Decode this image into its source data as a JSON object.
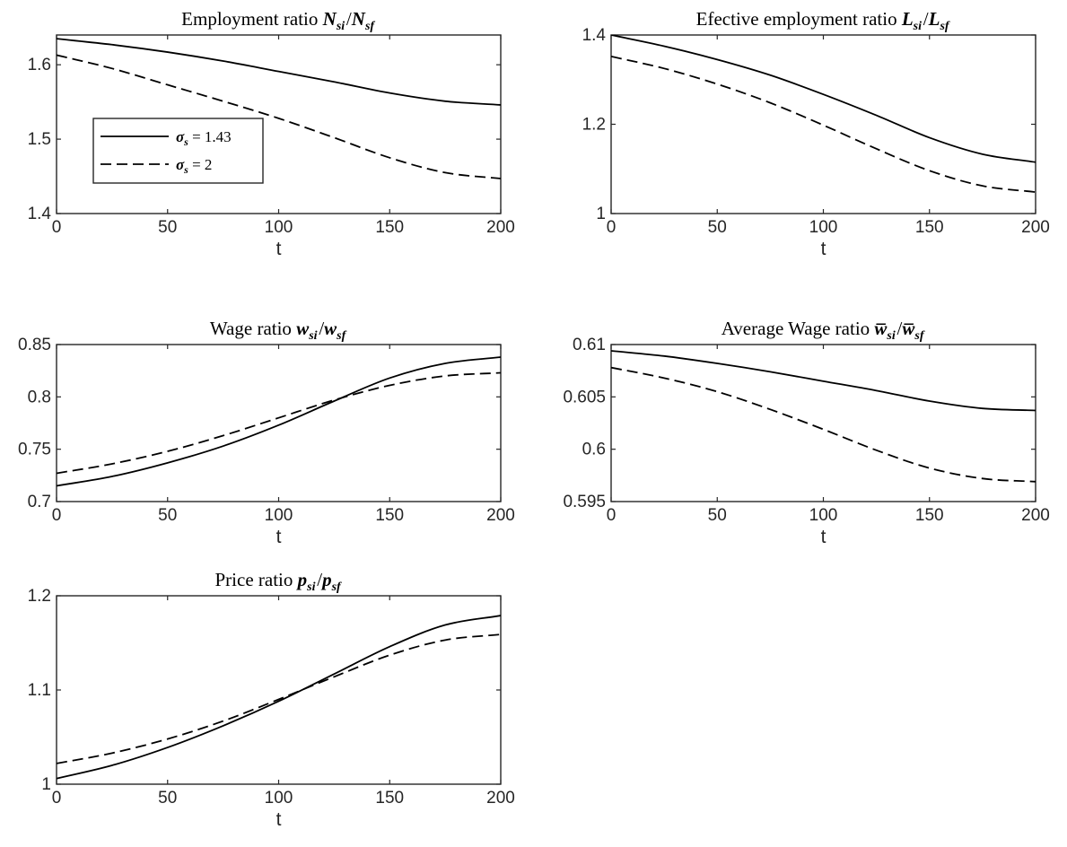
{
  "chart_data": [
    {
      "type": "line",
      "title": "Employment ratio N_si/N_sf",
      "title_plain": "Employment ratio",
      "title_math": [
        {
          "base": "N",
          "sub": "si"
        },
        {
          "text": "/"
        },
        {
          "base": "N",
          "sub": "sf"
        }
      ],
      "xlabel": "t",
      "ylabel": "",
      "xlim": [
        0,
        200
      ],
      "ylim": [
        1.4,
        1.64
      ],
      "xticks": [
        0,
        50,
        100,
        150,
        200
      ],
      "xtick_labels": [
        "0",
        "50",
        "100",
        "150",
        "200"
      ],
      "yticks": [
        1.4,
        1.5,
        1.6
      ],
      "ytick_labels": [
        "1.4",
        "1.5",
        "1.6"
      ],
      "grid": false,
      "legend": {
        "placement": "inside-left",
        "entries": [
          {
            "series": 0,
            "symbol": "σ",
            "sub": "s",
            "rest": " = 1.43"
          },
          {
            "series": 1,
            "symbol": "σ",
            "sub": "s",
            "rest": " = 2"
          }
        ]
      },
      "x": [
        0,
        25,
        50,
        75,
        100,
        125,
        150,
        175,
        200
      ],
      "series": [
        {
          "name": "σs = 1.43",
          "style": "solid",
          "values": [
            1.635,
            1.627,
            1.617,
            1.605,
            1.591,
            1.577,
            1.562,
            1.551,
            1.546
          ]
        },
        {
          "name": "σs = 2",
          "style": "dashed",
          "values": [
            1.613,
            1.595,
            1.573,
            1.551,
            1.528,
            1.502,
            1.475,
            1.455,
            1.447
          ]
        }
      ]
    },
    {
      "type": "line",
      "title": "Efective employment ratio L_si/L_sf",
      "title_plain": "Efective employment ratio",
      "title_math": [
        {
          "base": "L",
          "sub": "si"
        },
        {
          "text": "/"
        },
        {
          "base": "L",
          "sub": "sf"
        }
      ],
      "xlabel": "t",
      "ylabel": "",
      "xlim": [
        0,
        200
      ],
      "ylim": [
        1,
        1.4
      ],
      "xticks": [
        0,
        50,
        100,
        150,
        200
      ],
      "xtick_labels": [
        "0",
        "50",
        "100",
        "150",
        "200"
      ],
      "yticks": [
        1,
        1.2,
        1.4
      ],
      "ytick_labels": [
        "1",
        "1.2",
        "1.4"
      ],
      "grid": false,
      "x": [
        0,
        25,
        50,
        75,
        100,
        125,
        150,
        175,
        200
      ],
      "series": [
        {
          "style": "solid",
          "values": [
            1.4,
            1.375,
            1.345,
            1.31,
            1.267,
            1.22,
            1.17,
            1.133,
            1.115
          ]
        },
        {
          "style": "dashed",
          "values": [
            1.352,
            1.325,
            1.29,
            1.248,
            1.198,
            1.145,
            1.096,
            1.062,
            1.048
          ]
        }
      ]
    },
    {
      "type": "line",
      "title": "Wage ratio w_si/w_sf",
      "title_plain": "Wage ratio",
      "title_math": [
        {
          "base": "w",
          "sub": "si"
        },
        {
          "text": "/"
        },
        {
          "base": "w",
          "sub": "sf"
        }
      ],
      "xlabel": "t",
      "ylabel": "",
      "xlim": [
        0,
        200
      ],
      "ylim": [
        0.7,
        0.85
      ],
      "xticks": [
        0,
        50,
        100,
        150,
        200
      ],
      "xtick_labels": [
        "0",
        "50",
        "100",
        "150",
        "200"
      ],
      "yticks": [
        0.7,
        0.75,
        0.8,
        0.85
      ],
      "ytick_labels": [
        "0.7",
        "0.75",
        "0.8",
        "0.85"
      ],
      "grid": false,
      "x": [
        0,
        25,
        50,
        75,
        100,
        125,
        150,
        175,
        200
      ],
      "series": [
        {
          "style": "solid",
          "values": [
            0.715,
            0.724,
            0.737,
            0.753,
            0.773,
            0.796,
            0.818,
            0.832,
            0.838
          ]
        },
        {
          "style": "dashed",
          "values": [
            0.727,
            0.736,
            0.748,
            0.763,
            0.78,
            0.797,
            0.811,
            0.82,
            0.823
          ]
        }
      ]
    },
    {
      "type": "line",
      "title": "Average Wage ratio w̄_si/w̄_sf",
      "title_plain": "Average Wage ratio",
      "title_math": [
        {
          "base": "w",
          "overline": true,
          "sub": "si"
        },
        {
          "text": "/"
        },
        {
          "base": "w",
          "overline": true,
          "sub": "sf"
        }
      ],
      "xlabel": "t",
      "ylabel": "",
      "xlim": [
        0,
        200
      ],
      "ylim": [
        0.595,
        0.61
      ],
      "xticks": [
        0,
        50,
        100,
        150,
        200
      ],
      "xtick_labels": [
        "0",
        "50",
        "100",
        "150",
        "200"
      ],
      "yticks": [
        0.595,
        0.6,
        0.605,
        0.61
      ],
      "ytick_labels": [
        "0.595",
        "0.6",
        "0.605",
        "0.61"
      ],
      "grid": false,
      "x": [
        0,
        25,
        50,
        75,
        100,
        125,
        150,
        175,
        200
      ],
      "series": [
        {
          "style": "solid",
          "values": [
            0.6094,
            0.6089,
            0.6082,
            0.6074,
            0.6065,
            0.6056,
            0.6046,
            0.6039,
            0.6037
          ]
        },
        {
          "style": "dashed",
          "values": [
            0.6078,
            0.6068,
            0.6055,
            0.6038,
            0.6019,
            0.5999,
            0.5982,
            0.5972,
            0.5969
          ]
        }
      ]
    },
    {
      "type": "line",
      "title": "Price ratio p_si/p_sf",
      "title_plain": "Price ratio",
      "title_math": [
        {
          "base": "p",
          "sub": "si"
        },
        {
          "text": "/"
        },
        {
          "base": "p",
          "sub": "sf"
        }
      ],
      "xlabel": "t",
      "ylabel": "",
      "xlim": [
        0,
        200
      ],
      "ylim": [
        1,
        1.2
      ],
      "xticks": [
        0,
        50,
        100,
        150,
        200
      ],
      "xtick_labels": [
        "0",
        "50",
        "100",
        "150",
        "200"
      ],
      "yticks": [
        1,
        1.1,
        1.2
      ],
      "ytick_labels": [
        "1",
        "1.1",
        "1.2"
      ],
      "grid": false,
      "x": [
        0,
        25,
        50,
        75,
        100,
        125,
        150,
        175,
        200
      ],
      "series": [
        {
          "style": "solid",
          "values": [
            1.006,
            1.02,
            1.039,
            1.062,
            1.088,
            1.117,
            1.146,
            1.169,
            1.179
          ]
        },
        {
          "style": "dashed",
          "values": [
            1.022,
            1.033,
            1.048,
            1.067,
            1.09,
            1.114,
            1.137,
            1.153,
            1.159
          ]
        }
      ]
    }
  ]
}
